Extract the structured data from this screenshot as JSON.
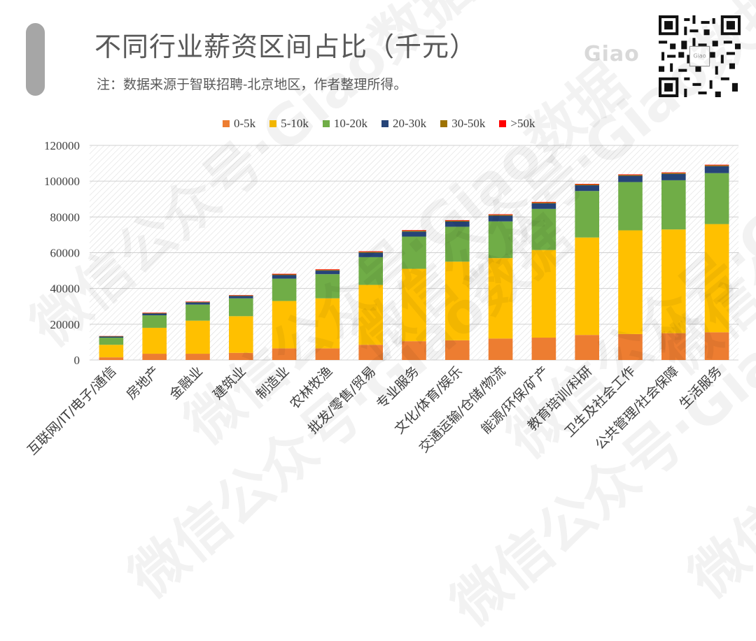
{
  "header": {
    "title": "不同行业薪资区间占比（千元）",
    "note": "注：数据来源于智联招聘-北京地区，作者整理所得。",
    "logo": "Giao"
  },
  "watermark_text": "微信公众号·Giao数据",
  "chart_data": {
    "type": "bar",
    "stacked": true,
    "title": "",
    "xlabel": "",
    "ylabel": "",
    "ylim": [
      0,
      120000
    ],
    "yticks": [
      0,
      20000,
      40000,
      60000,
      80000,
      100000,
      120000
    ],
    "grid": true,
    "legend_position": "top",
    "categories": [
      "互联网/IT/电子/通信",
      "房地产",
      "金融业",
      "建筑业",
      "制造业",
      "农林牧渔",
      "批发/零售/贸易",
      "专业服务",
      "文化/体育/娱乐",
      "交通运输/仓储/物流",
      "能源/环保/矿产",
      "教育培训/科研",
      "卫生及社会工作",
      "公共管理/社会保障",
      "生活服务"
    ],
    "series": [
      {
        "name": "0-5k",
        "color": "#ed7d31",
        "values": [
          1500,
          3500,
          3500,
          4000,
          6500,
          6500,
          8500,
          10500,
          11000,
          12000,
          12500,
          14000,
          14500,
          15000,
          15500
        ]
      },
      {
        "name": "5-10k",
        "color": "#ffc000",
        "values": [
          7000,
          14500,
          18500,
          20500,
          26500,
          28000,
          33500,
          40500,
          44000,
          45000,
          49000,
          54500,
          58000,
          58000,
          60500
        ]
      },
      {
        "name": "10-20k",
        "color": "#70ad47",
        "values": [
          4000,
          7000,
          9000,
          10000,
          12500,
          13500,
          15500,
          18000,
          19500,
          20500,
          23000,
          26000,
          27000,
          27500,
          28500
        ]
      },
      {
        "name": "20-30k",
        "color": "#264478",
        "values": [
          600,
          1000,
          1200,
          1300,
          2000,
          2000,
          2500,
          2800,
          2900,
          3200,
          3100,
          3200,
          3500,
          3600,
          3900
        ]
      },
      {
        "name": "30-50k",
        "color": "#9e7300",
        "values": [
          200,
          300,
          300,
          300,
          400,
          400,
          500,
          500,
          500,
          500,
          500,
          500,
          500,
          500,
          500
        ]
      },
      {
        "name": ">50k",
        "color": "#ff0000",
        "values": [
          100,
          200,
          200,
          200,
          300,
          300,
          300,
          300,
          300,
          300,
          300,
          300,
          300,
          300,
          300
        ]
      }
    ]
  }
}
